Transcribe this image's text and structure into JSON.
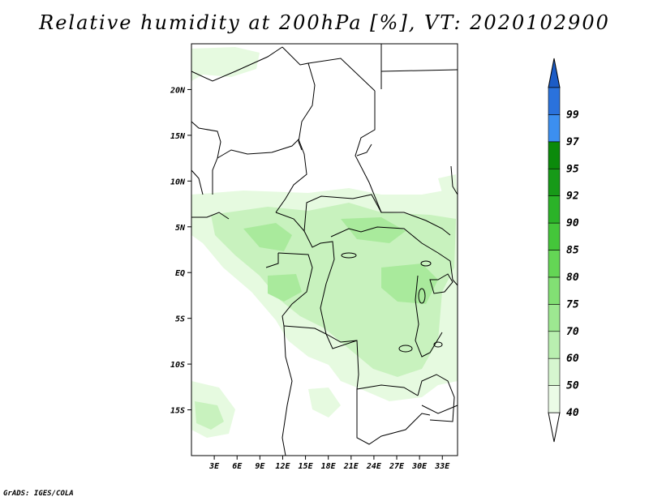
{
  "title": "Relative humidity at 200hPa [%], VT: 2020102900",
  "credit": "GrADS: IGES/COLA",
  "map": {
    "lon_range": [
      0,
      35
    ],
    "lat_range": [
      -20,
      25
    ],
    "lat_ticks": [
      {
        "value": 20,
        "label": "20N"
      },
      {
        "value": 15,
        "label": "15N"
      },
      {
        "value": 10,
        "label": "10N"
      },
      {
        "value": 5,
        "label": "5N"
      },
      {
        "value": 0,
        "label": "EQ"
      },
      {
        "value": -5,
        "label": "5S"
      },
      {
        "value": -10,
        "label": "10S"
      },
      {
        "value": -15,
        "label": "15S"
      }
    ],
    "lon_ticks": [
      {
        "value": 3,
        "label": "3E"
      },
      {
        "value": 6,
        "label": "6E"
      },
      {
        "value": 9,
        "label": "9E"
      },
      {
        "value": 12,
        "label": "12E"
      },
      {
        "value": 15,
        "label": "15E"
      },
      {
        "value": 18,
        "label": "18E"
      },
      {
        "value": 21,
        "label": "21E"
      },
      {
        "value": 24,
        "label": "24E"
      },
      {
        "value": 27,
        "label": "27E"
      },
      {
        "value": 30,
        "label": "30E"
      },
      {
        "value": 33,
        "label": "33E"
      }
    ]
  },
  "colorbar": {
    "levels": [
      {
        "label": "40",
        "color": "#ebfbe6"
      },
      {
        "label": "50",
        "color": "#d6f6cf"
      },
      {
        "label": "60",
        "color": "#b9efb0"
      },
      {
        "label": "70",
        "color": "#9de891"
      },
      {
        "label": "75",
        "color": "#82e074"
      },
      {
        "label": "80",
        "color": "#64d655"
      },
      {
        "label": "85",
        "color": "#44c63a"
      },
      {
        "label": "90",
        "color": "#2bb328"
      },
      {
        "label": "92",
        "color": "#179a18"
      },
      {
        "label": "95",
        "color": "#0b8a0b"
      },
      {
        "label": "97",
        "color": "#3c8ff0"
      },
      {
        "label": "99",
        "color": "#2a72dc"
      }
    ],
    "top_arrow_color": "#1c5cc6",
    "bottom_arrow_color": "#ffffff"
  },
  "colors": {
    "humidity_light": "#e6fae0",
    "humidity_mid": "#c8f2be",
    "humidity_dark": "#a9ea9c",
    "border": "#000000"
  }
}
